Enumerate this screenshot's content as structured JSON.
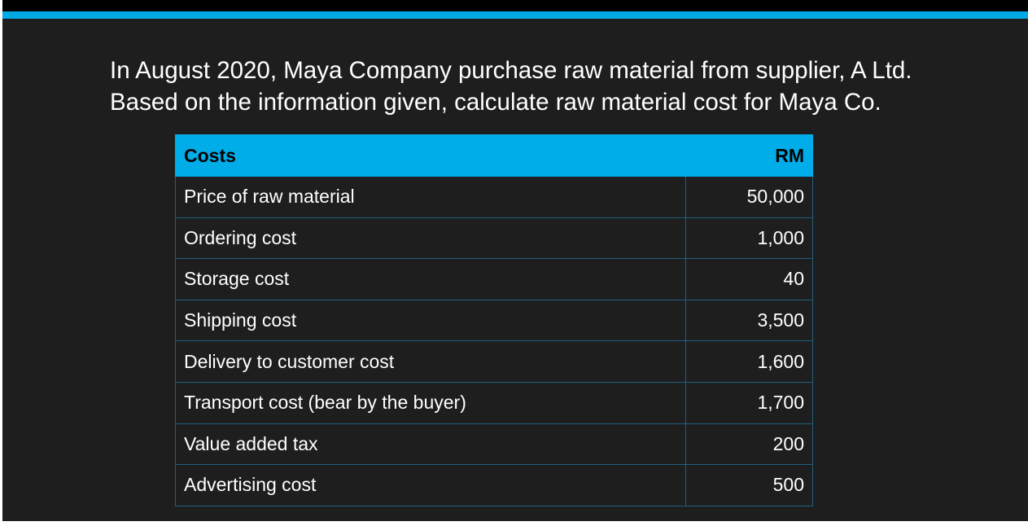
{
  "question": {
    "line1": "In August 2020, Maya Company purchase raw material from supplier, A Ltd.",
    "line2": "Based on the information given, calculate raw material cost for Maya Co."
  },
  "table": {
    "header": {
      "item": "Costs",
      "amount": "RM"
    },
    "rows": [
      {
        "item": "Price of raw material",
        "amount": "50,000"
      },
      {
        "item": "Ordering cost",
        "amount": "1,000"
      },
      {
        "item": "Storage cost",
        "amount": "40"
      },
      {
        "item": "Shipping cost",
        "amount": "3,500"
      },
      {
        "item": "Delivery to customer cost",
        "amount": "1,600"
      },
      {
        "item": "Transport cost (bear by the buyer)",
        "amount": "1,700"
      },
      {
        "item": "Value added tax",
        "amount": "200"
      },
      {
        "item": "Advertising cost",
        "amount": "500"
      }
    ]
  },
  "colors": {
    "background": "#1e1e1e",
    "accent": "#00a8e6",
    "header_fill": "#00ade8",
    "border": "#1f5f80"
  }
}
